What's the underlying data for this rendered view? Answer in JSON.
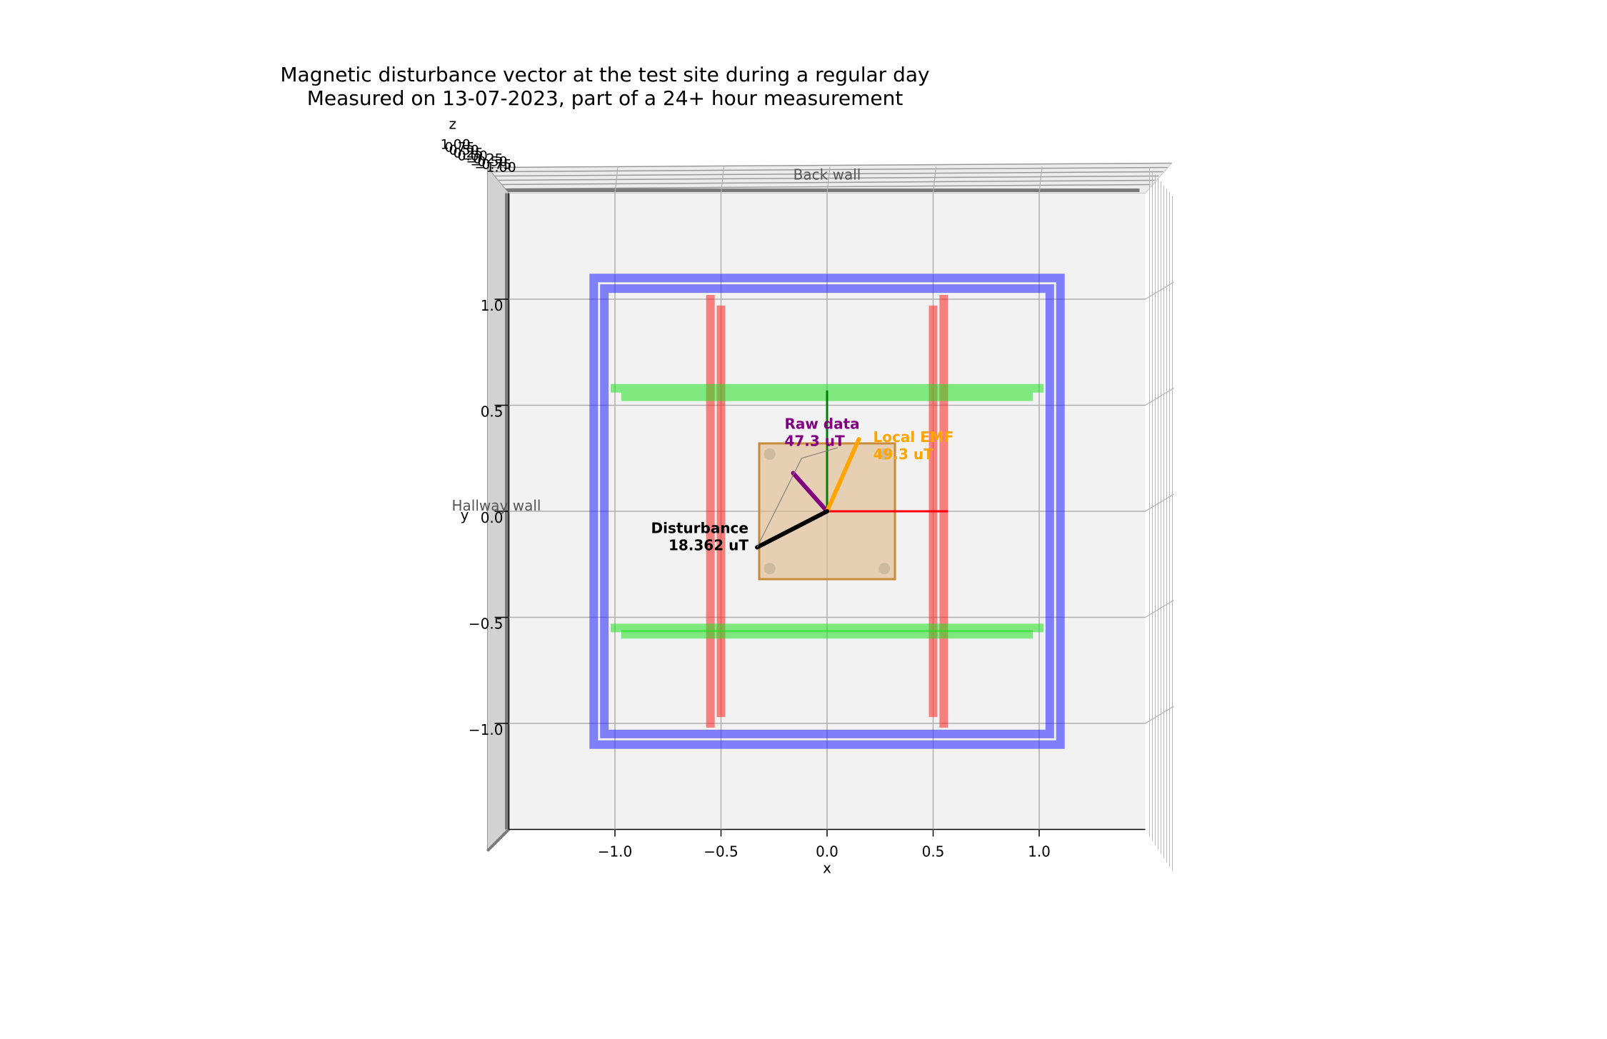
{
  "chart_data": {
    "type": "3d-vector",
    "title": "Magnetic disturbance vector at the test site during a regular day",
    "subtitle": "Measured on 13-07-2023, part of a 24+ hour measurement",
    "xlabel": "x",
    "ylabel": "y",
    "zlabel": "z",
    "xlim": [
      -1.5,
      1.5
    ],
    "ylim": [
      -1.5,
      1.5
    ],
    "x_ticks": [
      -1.0,
      -0.5,
      0.0,
      0.5,
      1.0
    ],
    "x_tick_labels": [
      "−1.0",
      "−0.5",
      "0.0",
      "0.5",
      "1.0"
    ],
    "y_ticks": [
      -1.0,
      -0.5,
      0.0,
      0.5,
      1.0
    ],
    "y_tick_labels": [
      "−1.0",
      "−0.5",
      "0.0",
      "0.5",
      "1.0"
    ],
    "z_tick_labels": [
      "1.00",
      "0.75",
      "0.50",
      "0.25",
      "0.00",
      "−0.25",
      "−0.50",
      "−0.75",
      "−1.00"
    ],
    "grid": true,
    "wall_labels": [
      "Back wall",
      "Hallway wall"
    ],
    "coils": [
      {
        "name": "x-coil pair",
        "color": "#ff2020",
        "segments": [
          {
            "x": [
              -0.55,
              -0.55
            ],
            "y": [
              1.0,
              -1.0
            ]
          },
          {
            "x": [
              -0.5,
              -0.5
            ],
            "y": [
              0.95,
              -0.95
            ]
          },
          {
            "x": [
              0.5,
              0.5
            ],
            "y": [
              0.95,
              -0.95
            ]
          },
          {
            "x": [
              0.55,
              0.55
            ],
            "y": [
              1.0,
              -1.0
            ]
          }
        ]
      },
      {
        "name": "y-coil pair",
        "color": "#20e020",
        "segments": [
          {
            "x": [
              -1.0,
              1.0
            ],
            "y": [
              0.58,
              0.58
            ]
          },
          {
            "x": [
              -0.95,
              0.95
            ],
            "y": [
              0.54,
              0.54
            ]
          },
          {
            "x": [
              -1.0,
              1.0
            ],
            "y": [
              -0.55,
              -0.55
            ]
          },
          {
            "x": [
              -0.95,
              0.95
            ],
            "y": [
              -0.58,
              -0.58
            ]
          }
        ]
      },
      {
        "name": "z-coil pair",
        "color": "#2020ff",
        "squares": [
          {
            "half_size": 1.1
          },
          {
            "half_size": 1.05
          }
        ]
      }
    ],
    "sensor_board": {
      "x": [
        -0.32,
        0.32
      ],
      "y": [
        -0.32,
        0.32
      ],
      "color": "#deb887"
    },
    "axes_arrows": [
      {
        "axis": "x",
        "color": "#ff0000",
        "to": [
          0.57,
          0.0
        ]
      },
      {
        "axis": "y",
        "color": "#008000",
        "to": [
          0.0,
          0.57
        ]
      }
    ],
    "vectors": [
      {
        "label": "Raw data",
        "value": "47.3 uT",
        "color": "#800080",
        "to": [
          -0.16,
          0.18
        ]
      },
      {
        "label": "Local EMF",
        "value": "49.3 uT",
        "color": "#ffa500",
        "to": [
          0.15,
          0.34
        ]
      },
      {
        "label": "Disturbance",
        "value": "18.362 uT",
        "color": "#000000",
        "to": [
          -0.33,
          -0.17
        ]
      }
    ]
  }
}
